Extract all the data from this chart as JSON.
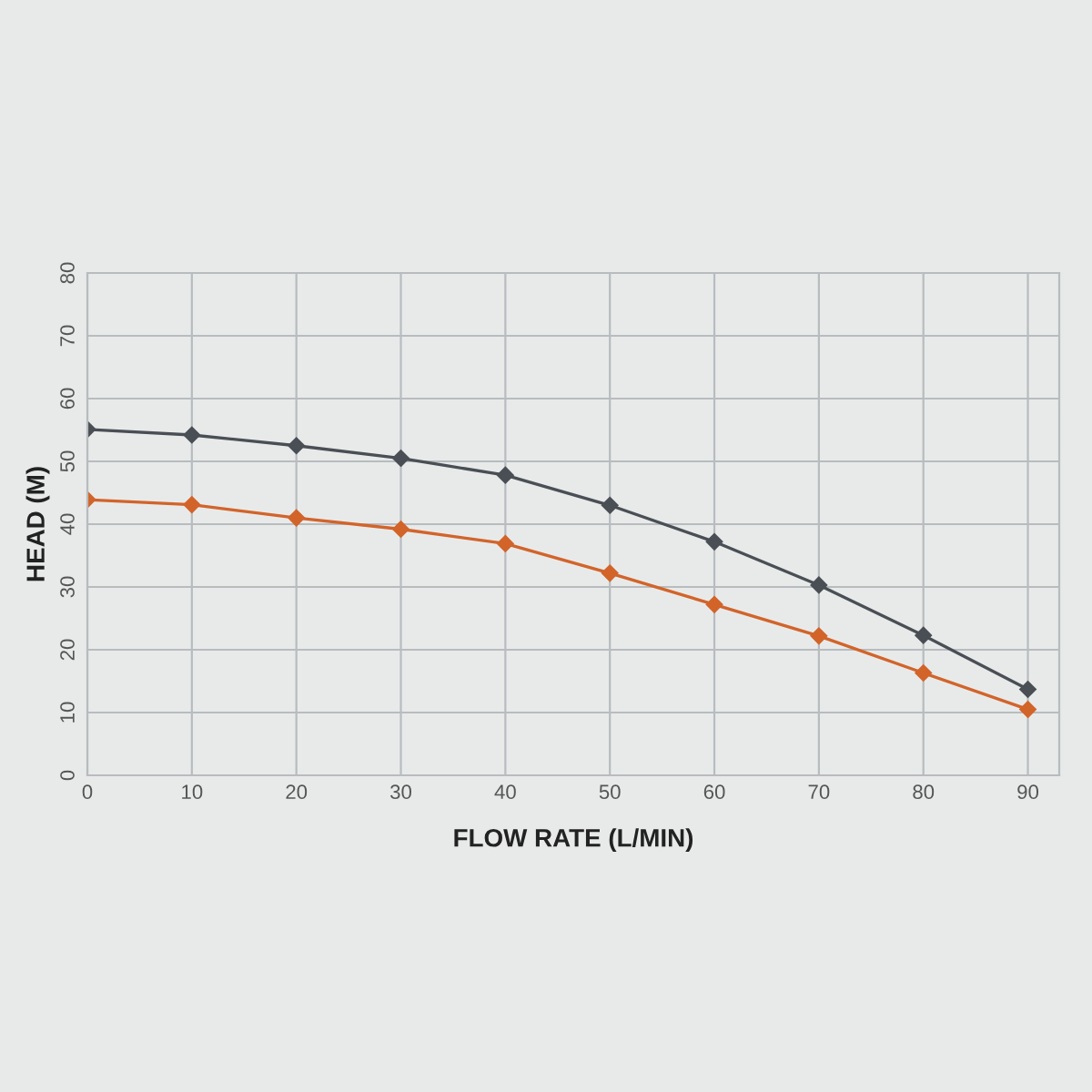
{
  "chart_data": {
    "type": "line",
    "xlabel": "FLOW RATE (L/MIN)",
    "ylabel": "HEAD (M)",
    "x": [
      0,
      10,
      20,
      30,
      40,
      50,
      60,
      70,
      80,
      90
    ],
    "series": [
      {
        "color": "#4a4f55",
        "values": [
          55.1,
          54.2,
          52.5,
          50.5,
          47.8,
          43.0,
          37.2,
          30.3,
          22.3,
          13.7
        ]
      },
      {
        "color": "#d2642a",
        "values": [
          43.9,
          43.1,
          41.0,
          39.2,
          36.9,
          32.2,
          27.2,
          22.2,
          16.3,
          10.5
        ]
      }
    ],
    "xlim": [
      0,
      93
    ],
    "xticks": [
      0,
      10,
      20,
      30,
      40,
      50,
      60,
      70,
      80,
      90
    ],
    "ylim": [
      0,
      80
    ],
    "yticks": [
      0,
      10,
      20,
      30,
      40,
      50,
      60,
      70,
      80
    ],
    "grid": true,
    "marker": "diamond",
    "line_style": "solid"
  }
}
